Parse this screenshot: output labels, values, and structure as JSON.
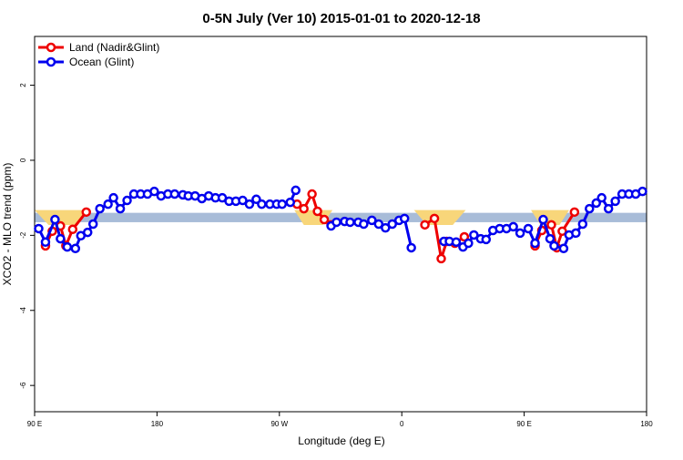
{
  "chart_data": {
    "type": "line",
    "title": "0-5N July (Ver 10)   2015-01-01 to 2020-12-18",
    "xlabel": "Longitude (deg E)",
    "ylabel": "XCO2 - MLO trend (ppm)",
    "xlim": [
      90,
      540
    ],
    "ylim": [
      -6.7,
      3.3
    ],
    "xticks": [
      {
        "value": 90,
        "label": "90 E"
      },
      {
        "value": 180,
        "label": "180"
      },
      {
        "value": 270,
        "label": "90 W"
      },
      {
        "value": 360,
        "label": "0"
      },
      {
        "value": 450,
        "label": "90 E"
      },
      {
        "value": 540,
        "label": "180"
      }
    ],
    "yticks": [
      2,
      0,
      -2,
      -4,
      -6
    ],
    "band": [
      -1.65,
      -1.4
    ],
    "band_color": "#a8bcd8",
    "shaded_regions": [
      [
        90,
        131
      ],
      [
        281,
        309
      ],
      [
        369,
        407
      ],
      [
        455,
        483
      ]
    ],
    "shaded_color": "#f8d67a",
    "legend": "top-left",
    "series": [
      {
        "name": "Land (Nadir&Glint)",
        "color": "#ee0000",
        "x": [
          98,
          103,
          109,
          113,
          118,
          128,
          null,
          283,
          288,
          294,
          298,
          303,
          308,
          null,
          377,
          384,
          389,
          393,
          399,
          406,
          null,
          458,
          463,
          470,
          474,
          478,
          487
        ],
        "values": [
          -2.28,
          -1.89,
          -1.75,
          -2.28,
          -1.84,
          -1.38,
          null,
          -1.17,
          -1.29,
          -0.9,
          -1.36,
          -1.58,
          -1.72,
          null,
          -1.72,
          -1.55,
          -2.62,
          -2.16,
          -2.21,
          -2.04,
          null,
          -2.28,
          -1.87,
          -1.72,
          -2.33,
          -1.89,
          -1.38
        ]
      },
      {
        "name": "Ocean (Glint)",
        "color": "#0000ee",
        "x": [
          93,
          98,
          105,
          109,
          114,
          120,
          124,
          129,
          133,
          138,
          144,
          148,
          153,
          158,
          163,
          168,
          173,
          178,
          183,
          188,
          193,
          199,
          203,
          208,
          213,
          218,
          223,
          228,
          233,
          238,
          243,
          248,
          253,
          257,
          263,
          268,
          272,
          278,
          282,
          null,
          308,
          312,
          318,
          322,
          328,
          332,
          338,
          343,
          348,
          353,
          358,
          362,
          367,
          null,
          391,
          395,
          400,
          405,
          409,
          413,
          418,
          422,
          427,
          432,
          437,
          442,
          447,
          453,
          458,
          464,
          469,
          472,
          479,
          483,
          488,
          493,
          498,
          503,
          507,
          512,
          517,
          522,
          527,
          532,
          537
        ],
        "values": [
          -1.82,
          -2.18,
          -1.58,
          -2.09,
          -2.31,
          -2.35,
          -2.01,
          -1.92,
          -1.7,
          -1.29,
          -1.17,
          -1.0,
          -1.29,
          -1.07,
          -0.9,
          -0.9,
          -0.9,
          -0.83,
          -0.95,
          -0.9,
          -0.9,
          -0.92,
          -0.95,
          -0.95,
          -1.02,
          -0.95,
          -1.0,
          -1.0,
          -1.09,
          -1.09,
          -1.07,
          -1.17,
          -1.04,
          -1.17,
          -1.17,
          -1.17,
          -1.17,
          -1.12,
          -0.8,
          null,
          -1.75,
          -1.65,
          -1.63,
          -1.65,
          -1.65,
          -1.7,
          -1.6,
          -1.7,
          -1.8,
          -1.7,
          -1.6,
          -1.55,
          -2.33,
          null,
          -2.16,
          -2.16,
          -2.18,
          -2.31,
          -2.21,
          -1.99,
          -2.09,
          -2.11,
          -1.87,
          -1.82,
          -1.82,
          -1.77,
          -1.94,
          -1.82,
          -2.21,
          -1.58,
          -2.09,
          -2.28,
          -2.35,
          -1.99,
          -1.94,
          -1.7,
          -1.29,
          -1.14,
          -1.0,
          -1.29,
          -1.09,
          -0.9,
          -0.9,
          -0.9,
          -0.83
        ]
      }
    ]
  }
}
